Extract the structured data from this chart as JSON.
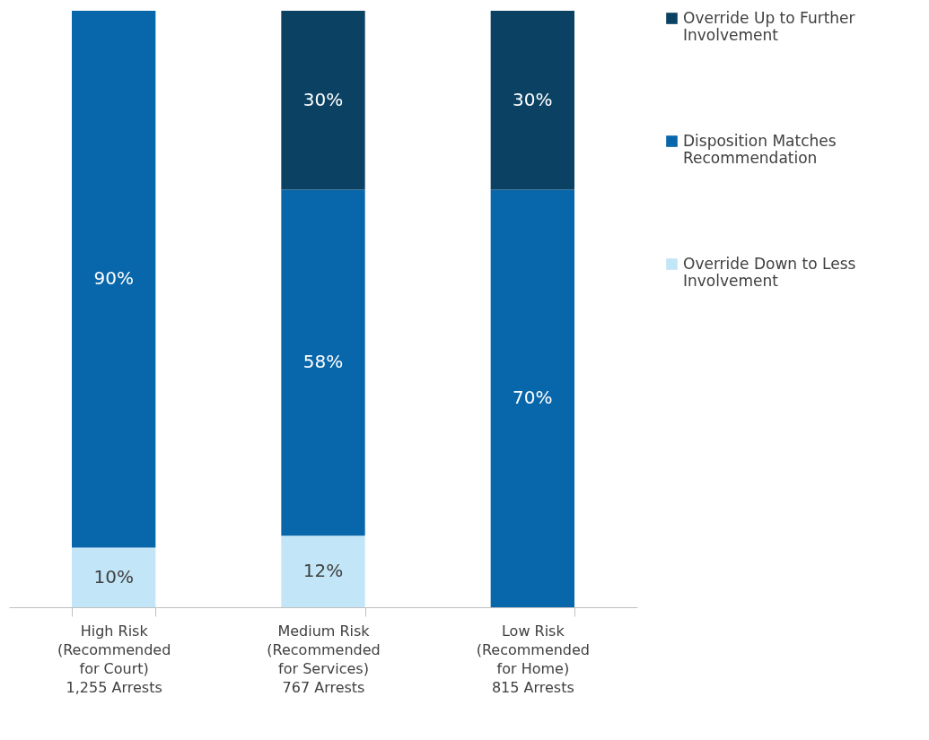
{
  "chart_data": {
    "type": "bar",
    "stacked": true,
    "legend": "right",
    "categories": [
      "High Risk\n(Recommended\nfor Court)\n1,255 Arrests",
      "Medium Risk\n(Recommended\nfor Services)\n767 Arrests",
      "Low Risk\n(Recommended\nfor Home)\n815 Arrests"
    ],
    "series": [
      {
        "name": "Override Down to Less Involvement",
        "color": "#c2e6f7",
        "values": [
          10,
          12,
          null
        ],
        "value_labels": [
          "10%",
          "12%",
          null
        ]
      },
      {
        "name": "Disposition Matches Recommendation",
        "color": "#0866aa",
        "values": [
          90,
          58,
          70
        ],
        "value_labels": [
          "90%",
          "58%",
          "70%"
        ]
      },
      {
        "name": "Override Up to Further Involvement",
        "color": "#0b4263",
        "values": [
          null,
          30,
          30
        ],
        "value_labels": [
          null,
          "30%",
          "30%"
        ]
      }
    ]
  }
}
